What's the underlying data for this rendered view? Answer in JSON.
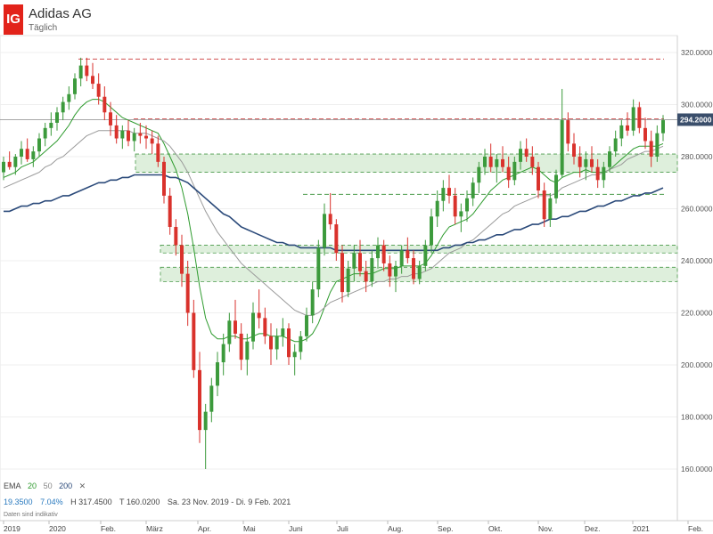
{
  "header": {
    "logo": "IG",
    "title": "Adidas AG",
    "subtitle": "Täglich"
  },
  "indicator": {
    "label": "EMA",
    "p20": "20",
    "p50": "50",
    "p200": "200",
    "close": "✕"
  },
  "stats": {
    "change": "19.3500",
    "change_pct": "7.04%",
    "high": "H 317.4500",
    "low": "T 160.0200",
    "range": "Sa. 23 Nov. 2019 - Di. 9 Feb. 2021"
  },
  "note": "Daten sind indikativ",
  "colors": {
    "up": "#3c9a3c",
    "down": "#d9322c",
    "ema20": "#2e9b2e",
    "ema50": "#9a9a9a",
    "ema200": "#2b4a7a",
    "resistance": "#d05050",
    "support": "#4a9a4a",
    "zone": "#d6ebd3",
    "price_tag": "#3a4e6b"
  },
  "chart_data": {
    "type": "candlestick",
    "title": "Adidas AG",
    "subtitle": "Täglich",
    "ylim": [
      155,
      325
    ],
    "y_ticks": [
      160,
      180,
      200,
      220,
      240,
      260,
      280,
      300,
      320
    ],
    "y_tick_labels": [
      "160.0000",
      "180.0000",
      "200.0000",
      "220.0000",
      "240.0000",
      "260.0000",
      "280.0000",
      "300.0000",
      "320.0000"
    ],
    "x_labels": [
      "2019",
      "2020",
      "Feb.",
      "März",
      "Apr.",
      "Mai",
      "Juni",
      "Juli",
      "Aug.",
      "Sep.",
      "Okt.",
      "Nov.",
      "Dez.",
      "2021",
      "Feb."
    ],
    "last_price": 294.2,
    "last_price_label": "294.2000",
    "key_levels": [
      {
        "type": "resistance",
        "value": 317.5
      },
      {
        "type": "resistance",
        "value": 294.5
      },
      {
        "type": "support",
        "value": 265.5
      }
    ],
    "zones": [
      {
        "from": 274,
        "to": 281
      },
      {
        "from": 243,
        "to": 246
      },
      {
        "from": 232,
        "to": 237.5
      }
    ],
    "candles": [
      [
        274,
        280,
        271,
        278
      ],
      [
        278,
        282,
        275,
        276
      ],
      [
        276,
        281,
        273,
        280
      ],
      [
        280,
        286,
        277,
        283
      ],
      [
        283,
        287,
        278,
        279
      ],
      [
        279,
        284,
        276,
        282
      ],
      [
        282,
        289,
        280,
        287
      ],
      [
        287,
        293,
        284,
        291
      ],
      [
        291,
        297,
        288,
        293
      ],
      [
        293,
        299,
        290,
        297
      ],
      [
        297,
        303,
        294,
        301
      ],
      [
        301,
        307,
        298,
        304
      ],
      [
        304,
        312,
        302,
        310
      ],
      [
        310,
        318,
        307,
        315
      ],
      [
        315,
        318,
        309,
        311
      ],
      [
        311,
        316,
        306,
        308
      ],
      [
        308,
        312,
        300,
        303
      ],
      [
        303,
        307,
        294,
        297
      ],
      [
        297,
        301,
        288,
        292
      ],
      [
        292,
        296,
        285,
        287
      ],
      [
        287,
        292,
        283,
        290
      ],
      [
        290,
        294,
        284,
        286
      ],
      [
        286,
        291,
        282,
        289
      ],
      [
        289,
        293,
        285,
        288
      ],
      [
        288,
        292,
        283,
        287
      ],
      [
        287,
        290,
        281,
        285
      ],
      [
        285,
        288,
        276,
        278
      ],
      [
        278,
        280,
        262,
        265
      ],
      [
        265,
        268,
        250,
        253
      ],
      [
        253,
        256,
        242,
        246
      ],
      [
        246,
        250,
        230,
        235
      ],
      [
        235,
        240,
        215,
        220
      ],
      [
        220,
        225,
        195,
        198
      ],
      [
        198,
        205,
        170,
        175
      ],
      [
        175,
        185,
        160,
        182
      ],
      [
        182,
        195,
        178,
        192
      ],
      [
        192,
        205,
        188,
        201
      ],
      [
        201,
        212,
        196,
        208
      ],
      [
        208,
        220,
        205,
        217
      ],
      [
        217,
        225,
        210,
        212
      ],
      [
        212,
        216,
        198,
        202
      ],
      [
        202,
        212,
        196,
        209
      ],
      [
        209,
        224,
        206,
        220
      ],
      [
        220,
        229,
        214,
        218
      ],
      [
        218,
        222,
        208,
        211
      ],
      [
        211,
        216,
        200,
        206
      ],
      [
        206,
        214,
        202,
        211
      ],
      [
        211,
        218,
        207,
        214
      ],
      [
        214,
        216,
        200,
        203
      ],
      [
        203,
        208,
        196,
        205
      ],
      [
        205,
        213,
        202,
        211
      ],
      [
        211,
        222,
        209,
        219
      ],
      [
        219,
        232,
        216,
        229
      ],
      [
        229,
        248,
        226,
        245
      ],
      [
        245,
        262,
        242,
        258
      ],
      [
        258,
        266,
        252,
        254
      ],
      [
        254,
        256,
        240,
        243
      ],
      [
        243,
        246,
        224,
        228
      ],
      [
        228,
        240,
        226,
        237
      ],
      [
        237,
        246,
        232,
        243
      ],
      [
        243,
        248,
        234,
        236
      ],
      [
        236,
        240,
        228,
        232
      ],
      [
        232,
        244,
        230,
        241
      ],
      [
        241,
        249,
        237,
        246
      ],
      [
        246,
        248,
        236,
        239
      ],
      [
        239,
        242,
        230,
        234
      ],
      [
        234,
        240,
        228,
        238
      ],
      [
        238,
        246,
        235,
        244
      ],
      [
        244,
        249,
        239,
        241
      ],
      [
        241,
        244,
        231,
        233
      ],
      [
        233,
        240,
        231,
        238
      ],
      [
        238,
        248,
        236,
        246
      ],
      [
        246,
        260,
        243,
        257
      ],
      [
        257,
        267,
        253,
        263
      ],
      [
        263,
        271,
        259,
        268
      ],
      [
        268,
        273,
        262,
        265
      ],
      [
        265,
        268,
        254,
        257
      ],
      [
        257,
        262,
        251,
        259
      ],
      [
        259,
        267,
        255,
        264
      ],
      [
        264,
        272,
        261,
        270
      ],
      [
        270,
        278,
        266,
        276
      ],
      [
        276,
        283,
        273,
        280
      ],
      [
        280,
        285,
        274,
        276
      ],
      [
        276,
        281,
        270,
        279
      ],
      [
        279,
        284,
        274,
        276
      ],
      [
        276,
        280,
        268,
        271
      ],
      [
        271,
        280,
        269,
        278
      ],
      [
        278,
        286,
        275,
        283
      ],
      [
        283,
        287,
        278,
        280
      ],
      [
        280,
        284,
        273,
        276
      ],
      [
        276,
        278,
        264,
        267
      ],
      [
        267,
        270,
        253,
        256
      ],
      [
        256,
        266,
        253,
        264
      ],
      [
        264,
        275,
        262,
        273
      ],
      [
        273,
        306,
        272,
        294
      ],
      [
        294,
        297,
        282,
        285
      ],
      [
        285,
        289,
        277,
        280
      ],
      [
        280,
        284,
        272,
        276
      ],
      [
        276,
        282,
        271,
        279
      ],
      [
        279,
        284,
        274,
        276
      ],
      [
        276,
        279,
        268,
        271
      ],
      [
        271,
        278,
        268,
        276
      ],
      [
        276,
        284,
        274,
        282
      ],
      [
        282,
        290,
        280,
        287
      ],
      [
        287,
        294,
        284,
        292
      ],
      [
        292,
        297,
        288,
        290
      ],
      [
        290,
        302,
        288,
        299
      ],
      [
        299,
        301,
        289,
        291
      ],
      [
        291,
        295,
        283,
        286
      ],
      [
        286,
        290,
        276,
        280
      ],
      [
        280,
        292,
        278,
        289
      ],
      [
        289,
        296,
        286,
        294
      ]
    ],
    "series": [
      {
        "name": "EMA 20",
        "values": [
          272,
          273,
          274,
          276,
          277,
          278,
          280,
          282,
          284,
          286,
          289,
          292,
          296,
          299,
          301,
          302,
          302,
          301,
          299,
          297,
          295,
          294,
          293,
          292,
          291,
          290,
          289,
          285,
          280,
          275,
          268,
          258,
          245,
          230,
          218,
          212,
          210,
          210,
          211,
          211,
          210,
          210,
          211,
          212,
          212,
          211,
          211,
          211,
          210,
          209,
          209,
          210,
          212,
          216,
          222,
          228,
          232,
          233,
          234,
          235,
          235,
          235,
          235,
          236,
          237,
          237,
          237,
          238,
          238,
          238,
          238,
          239,
          242,
          246,
          250,
          253,
          254,
          255,
          256,
          258,
          261,
          264,
          267,
          269,
          271,
          272,
          273,
          274,
          275,
          276,
          275,
          273,
          271,
          270,
          272,
          273,
          274,
          274,
          275,
          274,
          274,
          274,
          275,
          277,
          279,
          281,
          283,
          284,
          284,
          284,
          284,
          285
        ]
      },
      {
        "name": "EMA 50",
        "values": [
          268,
          269,
          270,
          271,
          272,
          273,
          274,
          276,
          277,
          279,
          280,
          282,
          284,
          286,
          288,
          289,
          290,
          290,
          290,
          290,
          290,
          290,
          289,
          289,
          289,
          288,
          287,
          286,
          284,
          281,
          278,
          274,
          269,
          264,
          259,
          255,
          251,
          248,
          245,
          242,
          239,
          237,
          235,
          233,
          231,
          229,
          227,
          225,
          223,
          221,
          220,
          219,
          219,
          220,
          222,
          224,
          225,
          226,
          227,
          228,
          229,
          230,
          231,
          232,
          232,
          233,
          233,
          234,
          234,
          235,
          235,
          236,
          237,
          239,
          241,
          243,
          244,
          245,
          247,
          248,
          250,
          252,
          254,
          256,
          258,
          259,
          261,
          262,
          263,
          264,
          265,
          265,
          265,
          266,
          268,
          269,
          270,
          271,
          272,
          273,
          273,
          274,
          275,
          276,
          277,
          279,
          280,
          281,
          282,
          282,
          283,
          284
        ]
      },
      {
        "name": "EMA 200",
        "values": [
          259,
          259,
          260,
          261,
          261,
          262,
          262,
          263,
          263,
          264,
          265,
          265,
          266,
          267,
          268,
          269,
          270,
          270,
          271,
          271,
          272,
          272,
          273,
          273,
          273,
          273,
          273,
          273,
          272,
          272,
          271,
          270,
          268,
          266,
          264,
          262,
          260,
          258,
          257,
          255,
          253,
          252,
          251,
          250,
          249,
          248,
          247,
          247,
          246,
          246,
          245,
          245,
          245,
          245,
          245,
          245,
          244,
          244,
          244,
          244,
          244,
          244,
          244,
          244,
          244,
          244,
          244,
          244,
          244,
          244,
          244,
          244,
          244,
          244,
          245,
          245,
          246,
          246,
          247,
          247,
          248,
          248,
          249,
          250,
          250,
          251,
          252,
          252,
          253,
          254,
          254,
          255,
          256,
          256,
          257,
          257,
          258,
          259,
          259,
          260,
          261,
          261,
          262,
          263,
          263,
          264,
          265,
          265,
          266,
          266,
          267,
          268
        ]
      }
    ]
  }
}
